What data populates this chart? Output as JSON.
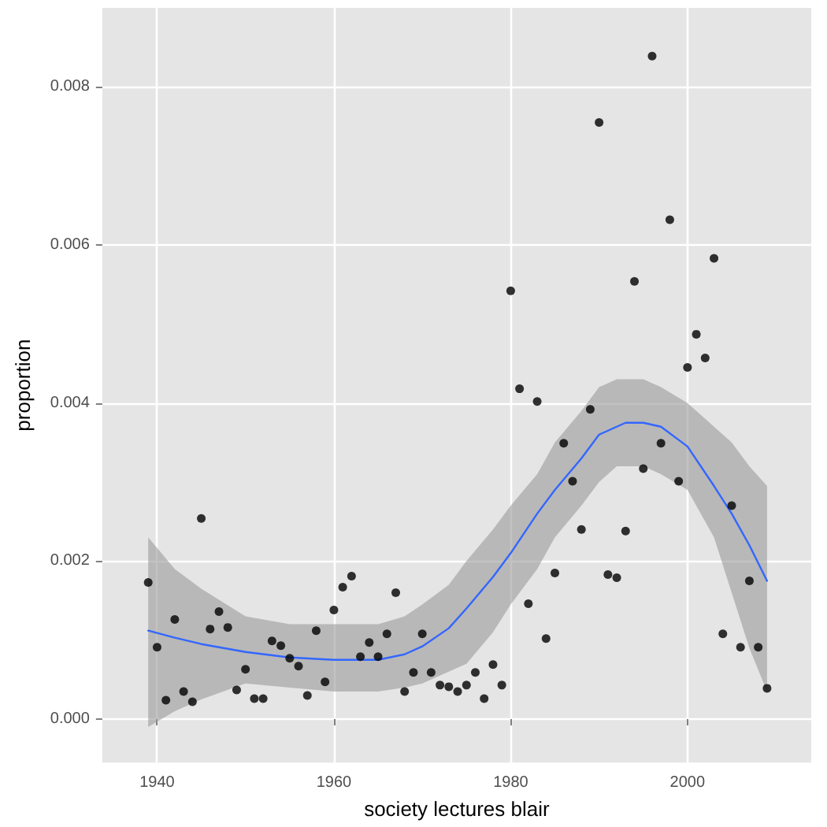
{
  "chart_data": {
    "type": "scatter",
    "xlabel": "society lectures blair",
    "ylabel": "proportion",
    "xlim": [
      1933.8,
      2014
    ],
    "ylim": [
      -0.00055,
      0.009
    ],
    "xticks": [
      1940,
      1960,
      1980,
      2000
    ],
    "yticks": [
      {
        "value": 0,
        "label": "0.000"
      },
      {
        "value": 0.002,
        "label": "0.002"
      },
      {
        "value": 0.004,
        "label": "0.004"
      },
      {
        "value": 0.006,
        "label": "0.006"
      },
      {
        "value": 0.008,
        "label": "0.008"
      }
    ],
    "grid": true,
    "marker": "circle",
    "series": [
      {
        "color": "#000000",
        "x": [
          1939,
          1940,
          1941,
          1942,
          1943,
          1944,
          1945,
          1946,
          1947,
          1948,
          1949,
          1950,
          1951,
          1952,
          1953,
          1954,
          1955,
          1956,
          1957,
          1958,
          1959,
          1960,
          1961,
          1962,
          1963,
          1964,
          1965,
          1966,
          1967,
          1968,
          1969,
          1970,
          1971,
          1972,
          1973,
          1974,
          1975,
          1976,
          1977,
          1978,
          1979,
          1980,
          1981,
          1982,
          1983,
          1984,
          1985,
          1986,
          1987,
          1988,
          1989,
          1990,
          1991,
          1992,
          1993,
          1994,
          1995,
          1996,
          1997,
          1998,
          1999,
          2000,
          2001,
          2002,
          2003,
          2004,
          2005,
          2006,
          2007,
          2008,
          2009
        ],
        "values": [
          0.00173,
          0.00091,
          0.00024,
          0.00126,
          0.00035,
          0.00022,
          0.00254,
          0.00114,
          0.00136,
          0.00116,
          0.00037,
          0.00063,
          0.00026,
          0.00026,
          0.00099,
          0.00093,
          0.00077,
          0.00067,
          0.0003,
          0.00112,
          0.00047,
          0.00138,
          0.00167,
          0.00181,
          0.00079,
          0.00097,
          0.00079,
          0.00108,
          0.0016,
          0.00035,
          0.00059,
          0.00108,
          0.00059,
          0.00043,
          0.00041,
          0.00035,
          0.00043,
          0.00059,
          0.00026,
          0.00069,
          0.00043,
          0.00542,
          0.00418,
          0.00146,
          0.00402,
          0.00102,
          0.00185,
          0.00349,
          0.00301,
          0.0024,
          0.00392,
          0.00755,
          0.00183,
          0.00179,
          0.00238,
          0.00554,
          0.00317,
          0.00839,
          0.00349,
          0.00632,
          0.00301,
          0.00445,
          0.00487,
          0.00457,
          0.00583,
          0.00108,
          0.0027,
          0.00091,
          0.00175,
          0.00091,
          0.00039
        ]
      },
      {
        "type": "line",
        "color": "#3366ff",
        "marker": "none",
        "x": [
          1939,
          1942,
          1945,
          1950,
          1955,
          1960,
          1965,
          1968,
          1970,
          1973,
          1975,
          1978,
          1980,
          1983,
          1985,
          1988,
          1990,
          1992,
          1993,
          1995,
          1997,
          2000,
          2003,
          2005,
          2007,
          2009
        ],
        "values": [
          0.00112,
          0.00103,
          0.00095,
          0.00085,
          0.00078,
          0.00075,
          0.00075,
          0.00082,
          0.00092,
          0.00115,
          0.0014,
          0.0018,
          0.0021,
          0.0026,
          0.0029,
          0.0033,
          0.0036,
          0.0037,
          0.00375,
          0.00375,
          0.0037,
          0.00345,
          0.00295,
          0.0026,
          0.0022,
          0.00175
        ],
        "lower": [
          -0.0001,
          0.0001,
          0.00025,
          0.00045,
          0.0004,
          0.00035,
          0.00035,
          0.0004,
          0.00045,
          0.0006,
          0.0007,
          0.0011,
          0.00145,
          0.0019,
          0.0023,
          0.0027,
          0.003,
          0.0032,
          0.0032,
          0.0032,
          0.0031,
          0.0029,
          0.0023,
          0.0016,
          0.0009,
          0.00035
        ],
        "upper": [
          0.0023,
          0.0019,
          0.00165,
          0.0013,
          0.0012,
          0.0012,
          0.0012,
          0.0013,
          0.00145,
          0.0017,
          0.002,
          0.0024,
          0.0027,
          0.0031,
          0.0035,
          0.0039,
          0.0042,
          0.0043,
          0.0043,
          0.0043,
          0.0042,
          0.004,
          0.0037,
          0.0035,
          0.0032,
          0.00295
        ]
      }
    ]
  }
}
